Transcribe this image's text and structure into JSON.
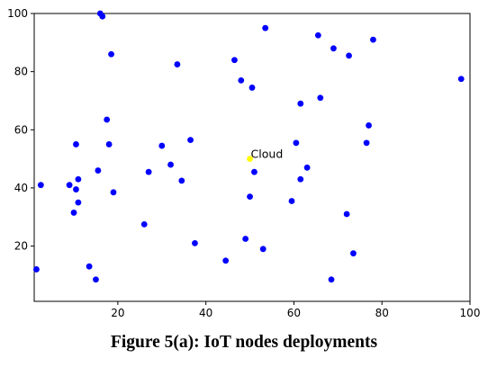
{
  "caption": "Figure 5(a): IoT nodes deployments",
  "chart_data": {
    "type": "scatter",
    "title": "",
    "xlabel": "",
    "ylabel": "",
    "xlim": [
      1,
      100
    ],
    "ylim": [
      1,
      100
    ],
    "xticks": [
      20,
      40,
      60,
      80,
      100
    ],
    "yticks": [
      20,
      40,
      60,
      80,
      100
    ],
    "grid": false,
    "series": [
      {
        "color": "#0000ff",
        "points": [
          [
            16,
            100
          ],
          [
            16.5,
            99
          ],
          [
            53.5,
            95
          ],
          [
            18.5,
            86
          ],
          [
            65.5,
            92.5
          ],
          [
            69,
            88
          ],
          [
            78,
            91
          ],
          [
            72.5,
            85.5
          ],
          [
            33.5,
            82.5
          ],
          [
            46.5,
            84
          ],
          [
            48,
            77
          ],
          [
            50.5,
            74.5
          ],
          [
            98,
            77.5
          ],
          [
            66,
            71
          ],
          [
            61.5,
            69
          ],
          [
            17.5,
            63.5
          ],
          [
            77,
            61.5
          ],
          [
            10.5,
            55
          ],
          [
            18,
            55
          ],
          [
            30,
            54.5
          ],
          [
            36.5,
            56.5
          ],
          [
            60.5,
            55.5
          ],
          [
            76.5,
            55.5
          ],
          [
            27,
            45.5
          ],
          [
            32,
            48
          ],
          [
            15.5,
            46
          ],
          [
            11,
            43
          ],
          [
            34.5,
            42.5
          ],
          [
            51,
            45.5
          ],
          [
            63,
            47
          ],
          [
            61.5,
            43
          ],
          [
            2.5,
            41
          ],
          [
            9,
            41
          ],
          [
            10.5,
            39.5
          ],
          [
            19,
            38.5
          ],
          [
            11,
            35
          ],
          [
            50,
            37
          ],
          [
            59.5,
            35.5
          ],
          [
            10,
            31.5
          ],
          [
            72,
            31
          ],
          [
            26,
            27.5
          ],
          [
            37.5,
            21
          ],
          [
            49,
            22.5
          ],
          [
            53,
            19
          ],
          [
            73.5,
            17.5
          ],
          [
            44.5,
            15
          ],
          [
            1.5,
            12
          ],
          [
            13.5,
            13
          ],
          [
            15,
            8.5
          ],
          [
            68.5,
            8.5
          ]
        ]
      },
      {
        "color": "#ffff00",
        "points": [
          [
            50,
            50
          ]
        ]
      }
    ],
    "annotations": [
      {
        "text": "Cloud",
        "x": 50,
        "y": 50
      }
    ]
  }
}
